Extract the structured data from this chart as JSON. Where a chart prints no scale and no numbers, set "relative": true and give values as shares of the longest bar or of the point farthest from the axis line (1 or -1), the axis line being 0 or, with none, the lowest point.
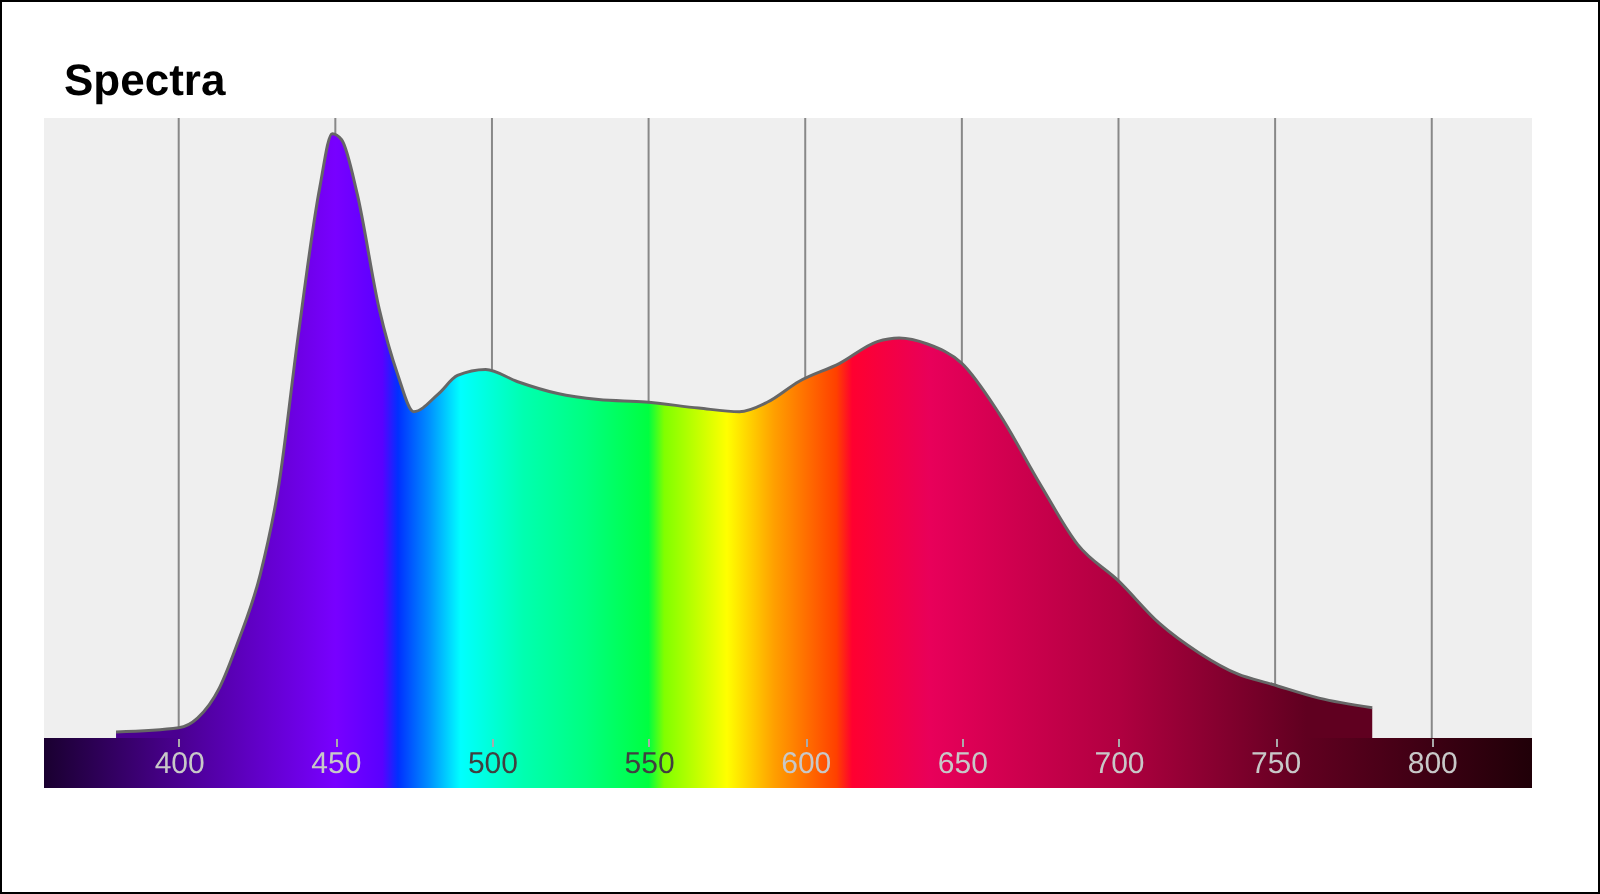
{
  "chart_data": {
    "type": "area",
    "title": "Spectra",
    "relative": true,
    "grid": "x",
    "tick_labels": "x",
    "xlim": [
      357,
      832
    ],
    "xticks": [
      400,
      450,
      500,
      550,
      600,
      650,
      700,
      750,
      800
    ],
    "x": [
      380,
      400,
      406,
      413,
      419,
      426,
      432,
      438,
      445,
      449,
      452,
      457,
      464,
      470,
      475,
      483,
      489,
      498,
      508,
      521,
      534,
      549,
      566,
      579,
      588,
      598,
      611,
      623,
      630,
      639,
      650,
      662,
      675,
      687,
      700,
      713,
      726,
      738,
      749,
      764,
      781
    ],
    "values": [
      0.01,
      0.017,
      0.033,
      0.083,
      0.16,
      0.27,
      0.42,
      0.66,
      0.91,
      1.0,
      0.99,
      0.9,
      0.71,
      0.6,
      0.54,
      0.57,
      0.6,
      0.61,
      0.59,
      0.57,
      0.56,
      0.556,
      0.546,
      0.54,
      0.556,
      0.59,
      0.62,
      0.656,
      0.662,
      0.652,
      0.62,
      0.536,
      0.42,
      0.32,
      0.26,
      0.19,
      0.14,
      0.106,
      0.089,
      0.066,
      0.05
    ]
  }
}
